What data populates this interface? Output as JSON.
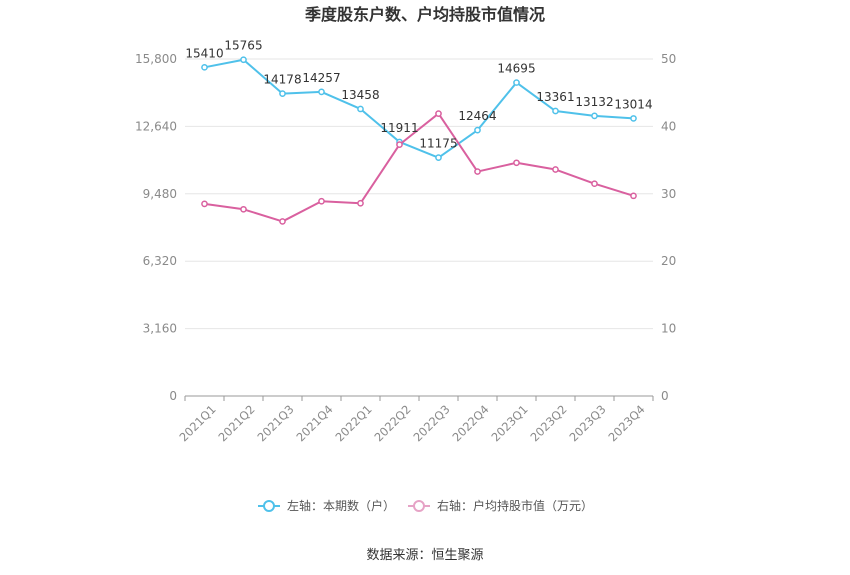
{
  "chart_data": {
    "type": "line",
    "title": "季度股东户数、户均持股市值情况",
    "categories": [
      "2021Q1",
      "2021Q2",
      "2021Q3",
      "2021Q4",
      "2022Q1",
      "2022Q2",
      "2022Q3",
      "2022Q4",
      "2023Q1",
      "2023Q2",
      "2023Q3",
      "2023Q4"
    ],
    "left_axis": {
      "ticks": [
        "0",
        "3,160",
        "6,320",
        "9,480",
        "12,640",
        "15,800"
      ],
      "ylim": [
        0,
        15800
      ]
    },
    "right_axis": {
      "ticks": [
        "0",
        "10",
        "20",
        "30",
        "40",
        "50"
      ],
      "ylim": [
        0,
        50
      ]
    },
    "series": [
      {
        "name": "左轴：本期数（户）",
        "axis": "left",
        "color": "#4fc1ea",
        "values": [
          15410,
          15765,
          14178,
          14257,
          13458,
          11911,
          11175,
          12464,
          14695,
          13361,
          13132,
          13014
        ],
        "labels": [
          "15410",
          "15765",
          "14178",
          "14257",
          "13458",
          "11911",
          "11175",
          "12464",
          "14695",
          "13361",
          "13132",
          "13014"
        ]
      },
      {
        "name": "右轴：户均持股市值（万元）",
        "axis": "right",
        "color": "#d9609f",
        "values": [
          28.5,
          27.7,
          25.9,
          28.9,
          28.6,
          37.3,
          41.9,
          33.3,
          34.6,
          33.6,
          31.5,
          29.7
        ]
      }
    ],
    "grid": true,
    "legend_position": "bottom"
  },
  "source": "数据来源：恒生聚源"
}
